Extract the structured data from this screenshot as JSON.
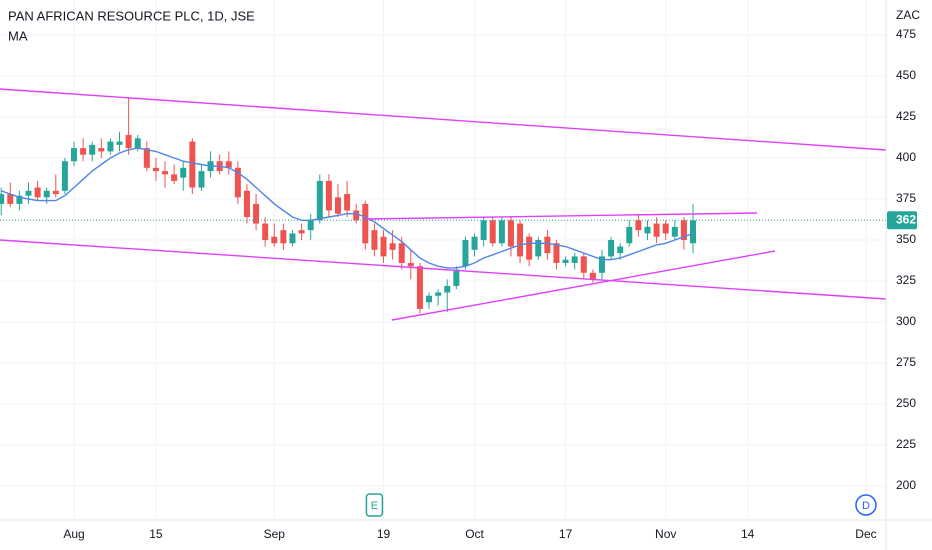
{
  "chart_data": {
    "type": "candlestick",
    "title": "PAN AFRICAN RESOURCE PLC, 1D, JSE",
    "unit": "ZAC",
    "up_color": "#26a69a",
    "down_color": "#ef5350",
    "grid": true,
    "xlim": [
      -0.13,
      97.2
    ],
    "xticks": [
      {
        "value": 8,
        "label": "Aug"
      },
      {
        "value": 17,
        "label": "15"
      },
      {
        "value": 30,
        "label": "Sep"
      },
      {
        "value": 42,
        "label": "19"
      },
      {
        "value": 52,
        "label": "Oct"
      },
      {
        "value": 62,
        "label": "17"
      },
      {
        "value": 73,
        "label": "Nov"
      },
      {
        "value": 82,
        "label": "14"
      },
      {
        "value": 95,
        "label": "Dec"
      }
    ],
    "ylim": [
      179.3,
      496.3
    ],
    "yticks": [
      200,
      225,
      250,
      275,
      300,
      325,
      350,
      375,
      400,
      425,
      450,
      475
    ],
    "x": [
      0,
      1,
      2,
      3,
      4,
      5,
      6,
      7,
      8,
      9,
      10,
      11,
      12,
      13,
      14,
      15,
      16,
      17,
      18,
      19,
      20,
      21,
      22,
      23,
      24,
      25,
      26,
      27,
      28,
      29,
      30,
      31,
      32,
      33,
      34,
      35,
      36,
      37,
      38,
      39,
      40,
      41,
      42,
      43,
      44,
      45,
      46,
      47,
      48,
      49,
      50,
      51,
      52,
      53,
      54,
      55,
      56,
      57,
      58,
      59,
      60,
      61,
      62,
      63,
      64,
      65,
      66,
      67,
      68,
      69,
      70,
      71,
      72,
      73,
      74,
      75,
      76
    ],
    "ohlc": [
      [
        372,
        382,
        365,
        378
      ],
      [
        378,
        385,
        370,
        372
      ],
      [
        372,
        380,
        368,
        377
      ],
      [
        377,
        385,
        372,
        380
      ],
      [
        382,
        386,
        374,
        376
      ],
      [
        376,
        382,
        372,
        380
      ],
      [
        380,
        390,
        376,
        378
      ],
      [
        380,
        400,
        378,
        398
      ],
      [
        398,
        410,
        395,
        406
      ],
      [
        406,
        412,
        398,
        402
      ],
      [
        402,
        410,
        398,
        408
      ],
      [
        406,
        412,
        400,
        404
      ],
      [
        404,
        412,
        402,
        410
      ],
      [
        408,
        416,
        404,
        410
      ],
      [
        414,
        437,
        402,
        406
      ],
      [
        406,
        414,
        404,
        412
      ],
      [
        406,
        410,
        392,
        394
      ],
      [
        394,
        400,
        386,
        392
      ],
      [
        392,
        398,
        382,
        390
      ],
      [
        390,
        396,
        384,
        386
      ],
      [
        388,
        398,
        380,
        394
      ],
      [
        410,
        412,
        378,
        382
      ],
      [
        382,
        396,
        380,
        392
      ],
      [
        392,
        404,
        388,
        398
      ],
      [
        398,
        402,
        390,
        392
      ],
      [
        398,
        404,
        390,
        394
      ],
      [
        394,
        398,
        372,
        376
      ],
      [
        380,
        384,
        360,
        364
      ],
      [
        372,
        378,
        356,
        360
      ],
      [
        360,
        364,
        346,
        350
      ],
      [
        352,
        360,
        346,
        348
      ],
      [
        356,
        360,
        344,
        348
      ],
      [
        348,
        356,
        346,
        354
      ],
      [
        356,
        360,
        350,
        354
      ],
      [
        356,
        366,
        350,
        362
      ],
      [
        362,
        390,
        360,
        386
      ],
      [
        386,
        390,
        364,
        368
      ],
      [
        376,
        384,
        364,
        366
      ],
      [
        378,
        386,
        364,
        368
      ],
      [
        368,
        372,
        360,
        362
      ],
      [
        372,
        374,
        344,
        348
      ],
      [
        356,
        360,
        340,
        344
      ],
      [
        352,
        356,
        336,
        340
      ],
      [
        348,
        356,
        338,
        344
      ],
      [
        348,
        352,
        332,
        336
      ],
      [
        336,
        344,
        326,
        334
      ],
      [
        334,
        336,
        305,
        308
      ],
      [
        312,
        318,
        308,
        316
      ],
      [
        316,
        320,
        310,
        318
      ],
      [
        318,
        326,
        306,
        322
      ],
      [
        322,
        334,
        320,
        332
      ],
      [
        334,
        352,
        332,
        350
      ],
      [
        344,
        354,
        340,
        352
      ],
      [
        350,
        364,
        346,
        362
      ],
      [
        362,
        364,
        346,
        348
      ],
      [
        348,
        364,
        346,
        362
      ],
      [
        362,
        364,
        340,
        346
      ],
      [
        360,
        362,
        336,
        340
      ],
      [
        352,
        354,
        334,
        338
      ],
      [
        340,
        352,
        338,
        350
      ],
      [
        352,
        356,
        338,
        342
      ],
      [
        348,
        350,
        332,
        336
      ],
      [
        336,
        340,
        334,
        338
      ],
      [
        336,
        342,
        332,
        340
      ],
      [
        340,
        342,
        326,
        330
      ],
      [
        330,
        332,
        324,
        326
      ],
      [
        330,
        344,
        326,
        340
      ],
      [
        340,
        352,
        338,
        350
      ],
      [
        342,
        348,
        338,
        346
      ],
      [
        348,
        362,
        346,
        358
      ],
      [
        362,
        366,
        352,
        356
      ],
      [
        354,
        362,
        350,
        358
      ],
      [
        360,
        364,
        348,
        352
      ],
      [
        360,
        362,
        350,
        354
      ],
      [
        352,
        362,
        350,
        358
      ],
      [
        362,
        364,
        344,
        350
      ],
      [
        348,
        372,
        342,
        362
      ]
    ],
    "series": [
      {
        "name": "MA",
        "color": "#4f86e8",
        "values": [
          380,
          378,
          376,
          375,
          374,
          374,
          374,
          377,
          382,
          387,
          392,
          396,
          400,
          403,
          405,
          406,
          405,
          404,
          402,
          400,
          398,
          397,
          396,
          395,
          395,
          394,
          391,
          387,
          382,
          377,
          372,
          368,
          364,
          362,
          362,
          363,
          364,
          365,
          366,
          366,
          364,
          361,
          357,
          353,
          349,
          344,
          339,
          336,
          334,
          333,
          333,
          334,
          336,
          339,
          341,
          343,
          345,
          347,
          348,
          348,
          348,
          347,
          346,
          344,
          342,
          340,
          338,
          338,
          339,
          341,
          343,
          345,
          347,
          348,
          350,
          352,
          354
        ]
      }
    ],
    "last_price": 362,
    "events": [
      {
        "x": 41,
        "label": "E"
      },
      {
        "x": 95,
        "label": "D"
      }
    ]
  }
}
